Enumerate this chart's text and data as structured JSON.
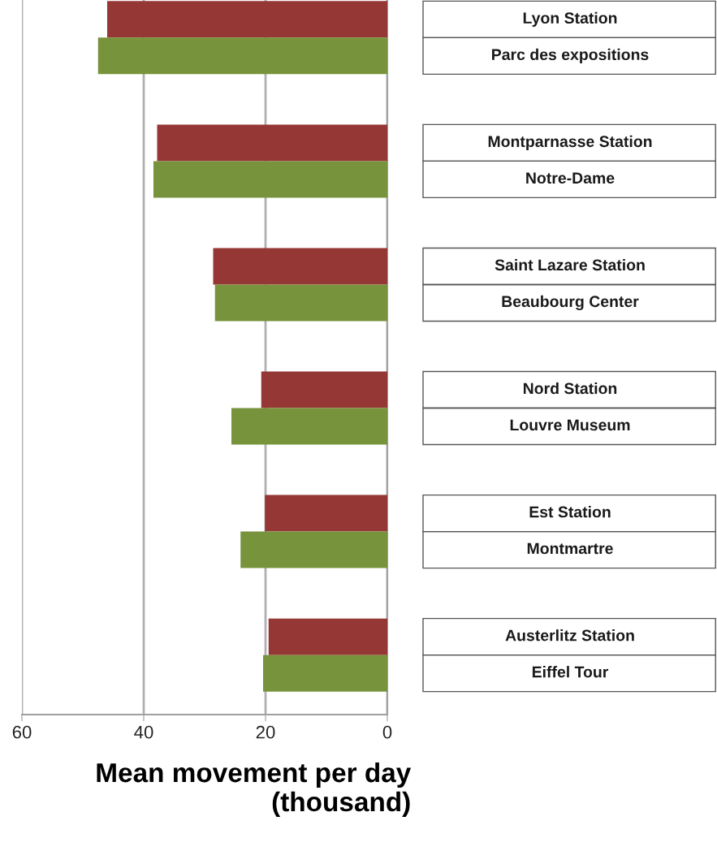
{
  "chart_data": {
    "type": "bar",
    "orientation": "horizontal",
    "categories": [
      "Lyon Station",
      "Parc des expositions",
      "Montparnasse Station",
      "Notre-Dame",
      "Saint Lazare Station",
      "Beaubourg Center",
      "Nord Station",
      "Louvre Museum",
      "Est Station",
      "Montmartre",
      "Austerlitz Station",
      "Eiffel Tour"
    ],
    "values": [
      46.0,
      47.5,
      37.8,
      38.4,
      28.6,
      28.3,
      20.7,
      25.6,
      20.1,
      24.1,
      19.5,
      20.4
    ],
    "colors": [
      "#953735",
      "#77933c",
      "#953735",
      "#77933c",
      "#953735",
      "#77933c",
      "#953735",
      "#77933c",
      "#953735",
      "#77933c",
      "#953735",
      "#77933c"
    ],
    "xlim": [
      60,
      0
    ],
    "xticks": [
      60,
      40,
      20,
      0
    ],
    "grid": "x",
    "xlabel": "Mean movement per day\n(thousand)"
  }
}
